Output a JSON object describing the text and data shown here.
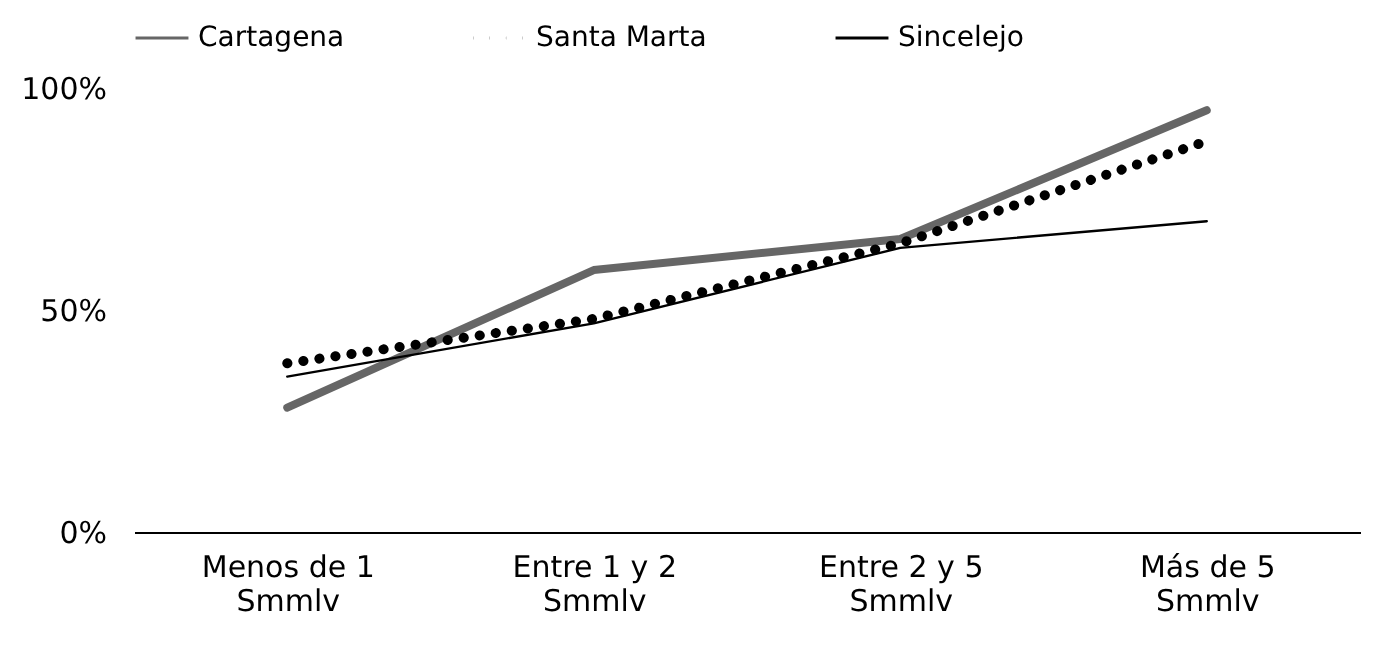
{
  "chart_data": {
    "type": "line",
    "categories": [
      "Menos de 1 Smmlv",
      "Entre 1 y 2 Smmlv",
      "Entre 2 y 5 Smmlv",
      "Más de 5 Smmlv"
    ],
    "series": [
      {
        "name": "Cartagena",
        "color": "#666666",
        "line_style": "solid",
        "values": [
          28,
          59,
          66,
          95
        ]
      },
      {
        "name": "Santa Marta",
        "color": "#000000",
        "line_style": "dotted",
        "values": [
          38,
          48,
          65,
          88
        ]
      },
      {
        "name": "Sincelejo",
        "color": "#000000",
        "line_style": "solid",
        "values": [
          35,
          47,
          64,
          70
        ]
      }
    ],
    "ylim": [
      0,
      100
    ],
    "yticks": [
      {
        "value": 0,
        "label": "0%"
      },
      {
        "value": 50,
        "label": "50%"
      },
      {
        "value": 100,
        "label": "100%"
      }
    ],
    "grid": false,
    "legend": "top",
    "marker": "none"
  }
}
